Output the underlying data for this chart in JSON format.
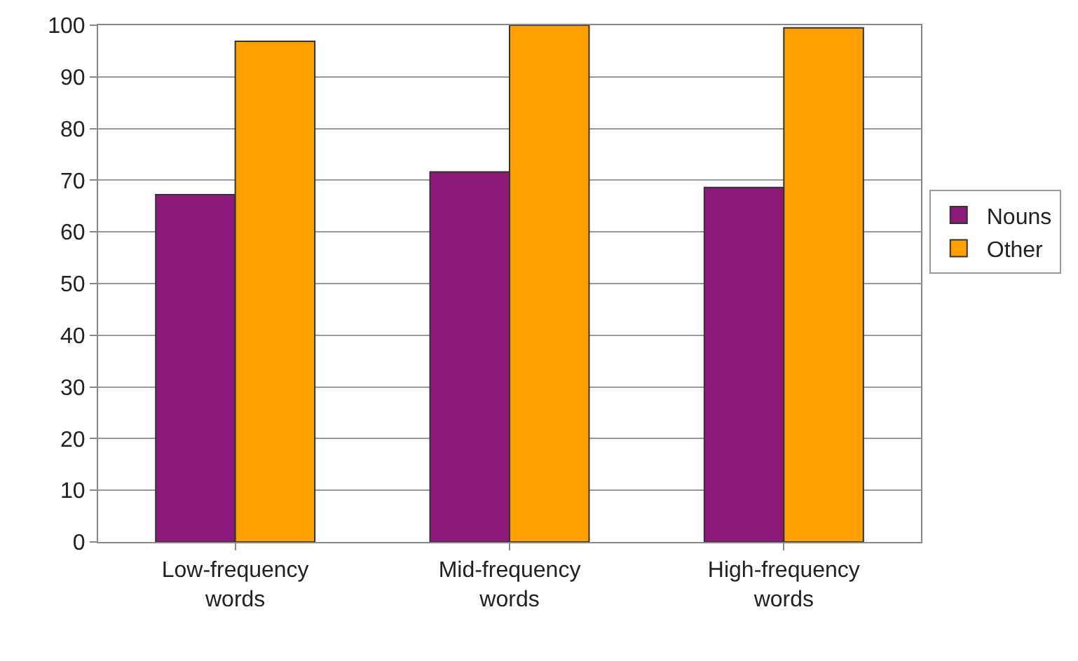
{
  "chart_data": {
    "type": "bar",
    "categories": [
      "Low-frequency\nwords",
      "Mid-frequency\nwords",
      "High-frequency\nwords"
    ],
    "series": [
      {
        "name": "Nouns",
        "color": "#8b1a7a",
        "values": [
          67.2,
          71.6,
          68.6
        ]
      },
      {
        "name": "Other",
        "color": "#ffa000",
        "values": [
          96.9,
          100,
          99.5
        ]
      }
    ],
    "ylim": [
      0,
      100
    ],
    "yticks": [
      0,
      10,
      20,
      30,
      40,
      50,
      60,
      70,
      80,
      90,
      100
    ],
    "grid": "y",
    "legend": "right"
  }
}
